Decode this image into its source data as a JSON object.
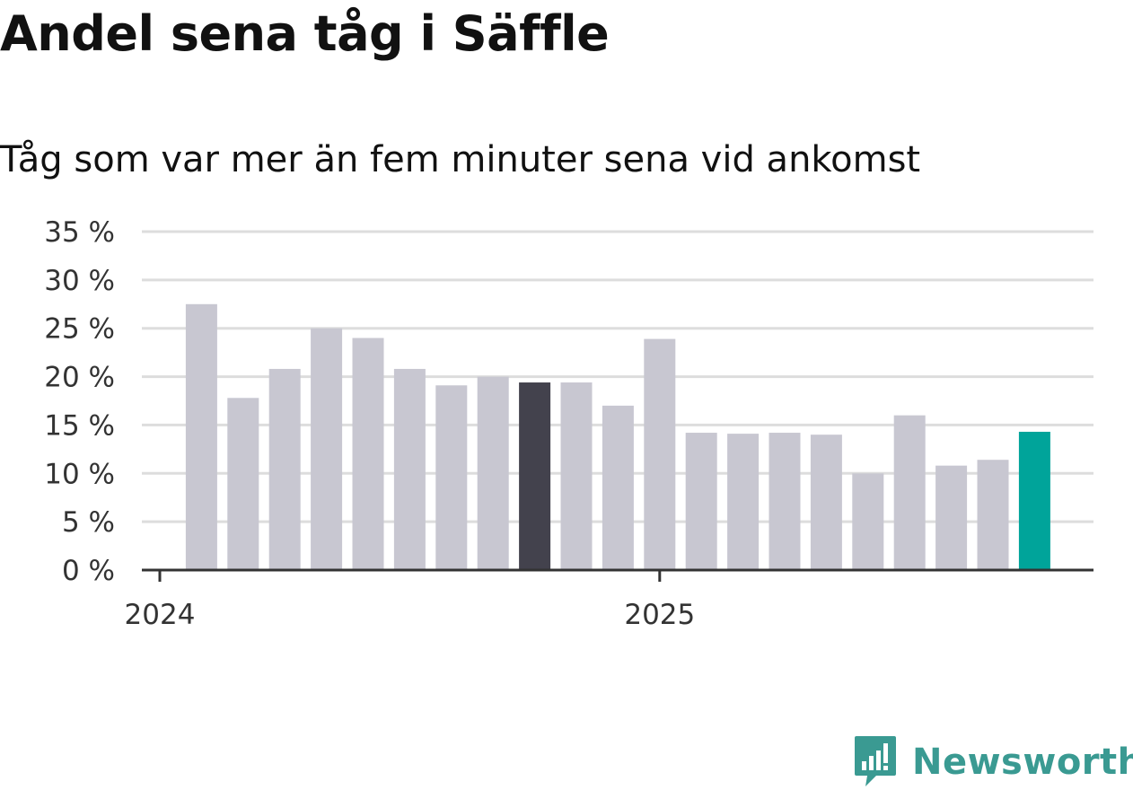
{
  "title": "Andel sena tåg i Säffle",
  "subtitle": "Tåg som var mer än fem minuter sena vid ankomst",
  "brand": {
    "name": "Newsworthy",
    "color": "#3a9a92",
    "icon": "newsworthy-logo-icon"
  },
  "chart_data": {
    "type": "bar",
    "title": "Andel sena tåg i Säffle",
    "subtitle": "Tåg som var mer än fem minuter sena vid ankomst",
    "xlabel": "",
    "ylabel": "",
    "ylim": [
      0,
      35
    ],
    "yticks": [
      0,
      5,
      10,
      15,
      20,
      25,
      30,
      35
    ],
    "ytick_labels": [
      "0 %",
      "5 %",
      "10 %",
      "15 %",
      "20 %",
      "25 %",
      "30 %",
      "35 %"
    ],
    "xtick_labels": [
      "2024",
      "2025"
    ],
    "xtick_positions": [
      0,
      12
    ],
    "grid": true,
    "colors": {
      "default": "#c8c7d1",
      "highlight": "#43424d",
      "latest": "#00a49a",
      "grid": "#dddddd",
      "axis": "#333333"
    },
    "categories": [
      "2024-01",
      "2024-02",
      "2024-03",
      "2024-04",
      "2024-05",
      "2024-06",
      "2024-07",
      "2024-08",
      "2024-09",
      "2024-10",
      "2024-11",
      "2024-12",
      "2025-01",
      "2025-02",
      "2025-03",
      "2025-04",
      "2025-05",
      "2025-06",
      "2025-07",
      "2025-08",
      "2025-09",
      "2025-10"
    ],
    "values": [
      null,
      27.5,
      17.8,
      20.8,
      25.0,
      24.0,
      20.8,
      19.1,
      20.0,
      19.4,
      19.4,
      17.0,
      23.9,
      14.2,
      14.1,
      14.2,
      14.0,
      10.0,
      16.0,
      10.8,
      11.4,
      14.3
    ],
    "highlight_index": 9,
    "latest_index": 21
  }
}
